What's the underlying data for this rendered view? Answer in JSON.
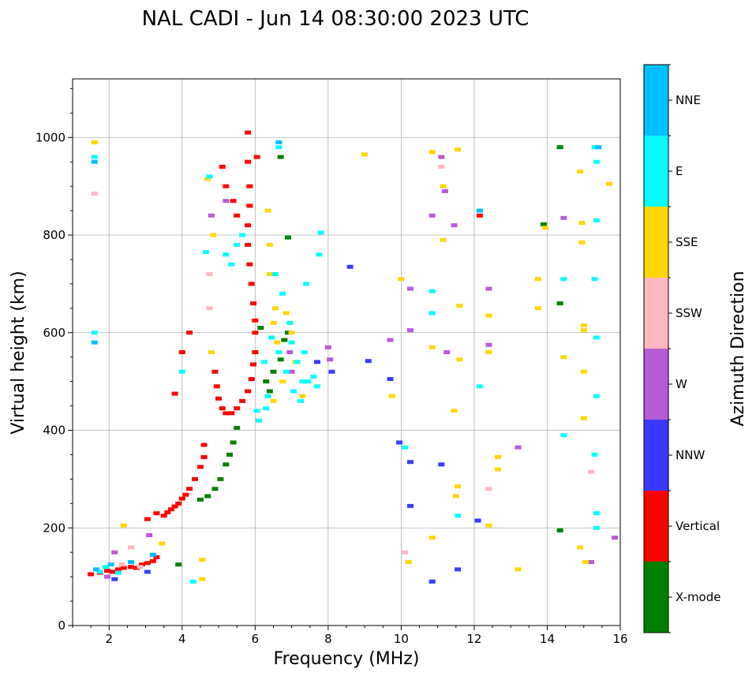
{
  "chart_data": {
    "type": "scatter",
    "title": "NAL CADI - Jun 14 08:30:00 2023 UTC",
    "xlabel": "Frequency (MHz)",
    "ylabel": "Virtual height (km)",
    "xlim": [
      1,
      16
    ],
    "ylim": [
      0,
      1120
    ],
    "xticks": [
      2,
      4,
      6,
      8,
      10,
      12,
      14,
      16
    ],
    "yticks": [
      0,
      200,
      400,
      600,
      800,
      1000
    ],
    "grid": true,
    "colorbar": {
      "label": "Azimuth Direction",
      "position": "right",
      "categories": [
        {
          "name": "X-mode",
          "color": "#008000"
        },
        {
          "name": "Vertical",
          "color": "#ff0000"
        },
        {
          "name": "NNW",
          "color": "#3a3aff"
        },
        {
          "name": "W",
          "color": "#b85ad8"
        },
        {
          "name": "SSW",
          "color": "#ffb6c1"
        },
        {
          "name": "SSE",
          "color": "#ffd700"
        },
        {
          "name": "E",
          "color": "#00ffff"
        },
        {
          "name": "NNE",
          "color": "#00bfff"
        }
      ]
    },
    "series": [
      {
        "name": "Vertical",
        "points": [
          [
            1.5,
            105
          ],
          [
            1.75,
            108
          ],
          [
            1.95,
            112
          ],
          [
            2.1,
            110
          ],
          [
            2.25,
            115
          ],
          [
            2.4,
            118
          ],
          [
            2.6,
            120
          ],
          [
            2.75,
            118
          ],
          [
            2.9,
            125
          ],
          [
            3.05,
            128
          ],
          [
            3.2,
            132
          ],
          [
            3.3,
            140
          ],
          [
            3.05,
            218
          ],
          [
            3.3,
            230
          ],
          [
            3.5,
            225
          ],
          [
            3.6,
            232
          ],
          [
            3.7,
            238
          ],
          [
            3.8,
            244
          ],
          [
            3.9,
            250
          ],
          [
            4.0,
            260
          ],
          [
            4.1,
            268
          ],
          [
            4.2,
            280
          ],
          [
            4.35,
            300
          ],
          [
            4.5,
            325
          ],
          [
            4.6,
            345
          ],
          [
            4.6,
            370
          ],
          [
            4.2,
            600
          ],
          [
            4.0,
            560
          ],
          [
            3.8,
            475
          ],
          [
            4.9,
            520
          ],
          [
            4.95,
            490
          ],
          [
            5.0,
            465
          ],
          [
            5.1,
            445
          ],
          [
            5.2,
            435
          ],
          [
            5.35,
            435
          ],
          [
            5.5,
            445
          ],
          [
            5.65,
            460
          ],
          [
            5.8,
            480
          ],
          [
            5.9,
            505
          ],
          [
            5.95,
            535
          ],
          [
            6.0,
            560
          ],
          [
            6.0,
            600
          ],
          [
            6.0,
            625
          ],
          [
            5.95,
            660
          ],
          [
            5.9,
            700
          ],
          [
            5.85,
            740
          ],
          [
            5.8,
            780
          ],
          [
            5.8,
            820
          ],
          [
            5.85,
            860
          ],
          [
            5.85,
            900
          ],
          [
            5.8,
            950
          ],
          [
            5.8,
            1010
          ],
          [
            6.05,
            960
          ],
          [
            5.5,
            840
          ],
          [
            5.4,
            870
          ],
          [
            5.2,
            900
          ],
          [
            5.1,
            940
          ],
          [
            12.15,
            840
          ]
        ]
      },
      {
        "name": "X-mode",
        "points": [
          [
            3.9,
            125
          ],
          [
            4.5,
            258
          ],
          [
            4.7,
            265
          ],
          [
            4.9,
            280
          ],
          [
            5.05,
            300
          ],
          [
            5.2,
            330
          ],
          [
            5.3,
            350
          ],
          [
            5.4,
            375
          ],
          [
            5.5,
            405
          ],
          [
            6.15,
            610
          ],
          [
            6.3,
            500
          ],
          [
            6.4,
            480
          ],
          [
            6.5,
            520
          ],
          [
            6.7,
            545
          ],
          [
            6.8,
            585
          ],
          [
            6.9,
            600
          ],
          [
            6.7,
            960
          ],
          [
            6.9,
            795
          ],
          [
            14.35,
            980
          ],
          [
            13.9,
            822
          ],
          [
            14.35,
            660
          ],
          [
            14.35,
            195
          ]
        ]
      },
      {
        "name": "NNW",
        "points": [
          [
            2.15,
            95
          ],
          [
            3.05,
            110
          ],
          [
            7.7,
            540
          ],
          [
            8.1,
            520
          ],
          [
            8.6,
            735
          ],
          [
            9.1,
            542
          ],
          [
            9.7,
            505
          ],
          [
            9.95,
            375
          ],
          [
            10.25,
            335
          ],
          [
            10.25,
            245
          ],
          [
            10.85,
            90
          ],
          [
            11.1,
            330
          ],
          [
            11.55,
            115
          ],
          [
            12.1,
            215
          ]
        ]
      },
      {
        "name": "W",
        "points": [
          [
            1.95,
            100
          ],
          [
            2.15,
            150
          ],
          [
            3.1,
            185
          ],
          [
            5.2,
            870
          ],
          [
            4.8,
            840
          ],
          [
            6.95,
            560
          ],
          [
            7.0,
            520
          ],
          [
            8.0,
            570
          ],
          [
            8.05,
            545
          ],
          [
            9.7,
            585
          ],
          [
            10.25,
            605
          ],
          [
            10.25,
            690
          ],
          [
            10.85,
            840
          ],
          [
            11.2,
            890
          ],
          [
            11.45,
            820
          ],
          [
            11.25,
            560
          ],
          [
            12.4,
            690
          ],
          [
            12.4,
            575
          ],
          [
            13.2,
            365
          ],
          [
            14.45,
            835
          ],
          [
            15.2,
            130
          ],
          [
            15.85,
            180
          ],
          [
            11.1,
            960
          ]
        ]
      },
      {
        "name": "SSW",
        "points": [
          [
            1.6,
            885
          ],
          [
            2.35,
            125
          ],
          [
            2.6,
            160
          ],
          [
            2.85,
            120
          ],
          [
            4.75,
            650
          ],
          [
            4.75,
            720
          ],
          [
            10.1,
            150
          ],
          [
            11.1,
            940
          ],
          [
            12.4,
            280
          ],
          [
            15.2,
            315
          ]
        ]
      },
      {
        "name": "SSE",
        "points": [
          [
            1.6,
            990
          ],
          [
            2.4,
            205
          ],
          [
            3.45,
            168
          ],
          [
            4.55,
            95
          ],
          [
            4.55,
            135
          ],
          [
            4.7,
            915
          ],
          [
            4.8,
            560
          ],
          [
            4.85,
            800
          ],
          [
            6.35,
            850
          ],
          [
            6.4,
            780
          ],
          [
            6.4,
            720
          ],
          [
            6.5,
            620
          ],
          [
            6.5,
            460
          ],
          [
            6.55,
            650
          ],
          [
            6.6,
            580
          ],
          [
            6.75,
            500
          ],
          [
            6.85,
            640
          ],
          [
            7.0,
            600
          ],
          [
            7.1,
            540
          ],
          [
            7.3,
            470
          ],
          [
            9.0,
            965
          ],
          [
            9.75,
            470
          ],
          [
            10.0,
            710
          ],
          [
            10.2,
            130
          ],
          [
            10.85,
            970
          ],
          [
            10.85,
            570
          ],
          [
            10.85,
            180
          ],
          [
            11.15,
            790
          ],
          [
            11.15,
            900
          ],
          [
            11.55,
            975
          ],
          [
            11.55,
            285
          ],
          [
            11.5,
            265
          ],
          [
            11.6,
            655
          ],
          [
            11.45,
            440
          ],
          [
            11.6,
            545
          ],
          [
            12.4,
            205
          ],
          [
            12.4,
            635
          ],
          [
            12.4,
            560
          ],
          [
            12.65,
            345
          ],
          [
            12.65,
            320
          ],
          [
            13.2,
            115
          ],
          [
            13.75,
            710
          ],
          [
            13.75,
            650
          ],
          [
            14.45,
            550
          ],
          [
            14.9,
            160
          ],
          [
            14.9,
            930
          ],
          [
            14.95,
            825
          ],
          [
            14.95,
            785
          ],
          [
            15.0,
            615
          ],
          [
            15.0,
            605
          ],
          [
            15.0,
            520
          ],
          [
            15.0,
            425
          ],
          [
            15.05,
            130
          ],
          [
            15.7,
            905
          ],
          [
            13.95,
            815
          ]
        ]
      },
      {
        "name": "E",
        "points": [
          [
            1.6,
            600
          ],
          [
            1.6,
            960
          ],
          [
            1.75,
            110
          ],
          [
            1.9,
            120
          ],
          [
            2.25,
            108
          ],
          [
            4.0,
            520
          ],
          [
            4.3,
            90
          ],
          [
            4.65,
            765
          ],
          [
            4.75,
            920
          ],
          [
            5.2,
            760
          ],
          [
            5.35,
            740
          ],
          [
            5.5,
            780
          ],
          [
            5.65,
            800
          ],
          [
            6.05,
            440
          ],
          [
            6.1,
            420
          ],
          [
            6.3,
            445
          ],
          [
            6.25,
            540
          ],
          [
            6.35,
            470
          ],
          [
            6.45,
            590
          ],
          [
            6.55,
            720
          ],
          [
            6.65,
            560
          ],
          [
            6.75,
            680
          ],
          [
            6.85,
            520
          ],
          [
            6.95,
            620
          ],
          [
            7.0,
            580
          ],
          [
            7.05,
            480
          ],
          [
            7.15,
            540
          ],
          [
            7.25,
            460
          ],
          [
            7.3,
            500
          ],
          [
            7.35,
            560
          ],
          [
            7.4,
            700
          ],
          [
            7.45,
            500
          ],
          [
            7.6,
            510
          ],
          [
            7.7,
            490
          ],
          [
            7.75,
            760
          ],
          [
            7.8,
            805
          ],
          [
            10.1,
            365
          ],
          [
            10.85,
            640
          ],
          [
            10.85,
            685
          ],
          [
            11.55,
            225
          ],
          [
            12.15,
            490
          ],
          [
            14.45,
            710
          ],
          [
            14.45,
            390
          ],
          [
            15.3,
            980
          ],
          [
            15.35,
            950
          ],
          [
            15.35,
            830
          ],
          [
            15.3,
            710
          ],
          [
            15.35,
            590
          ],
          [
            15.35,
            470
          ],
          [
            15.3,
            350
          ],
          [
            15.35,
            230
          ],
          [
            15.35,
            200
          ],
          [
            6.65,
            980
          ]
        ]
      },
      {
        "name": "NNE",
        "points": [
          [
            1.6,
            950
          ],
          [
            1.6,
            580
          ],
          [
            1.65,
            115
          ],
          [
            2.05,
            125
          ],
          [
            2.6,
            130
          ],
          [
            3.2,
            145
          ],
          [
            6.65,
            990
          ],
          [
            12.15,
            850
          ],
          [
            15.4,
            980
          ]
        ]
      }
    ]
  }
}
